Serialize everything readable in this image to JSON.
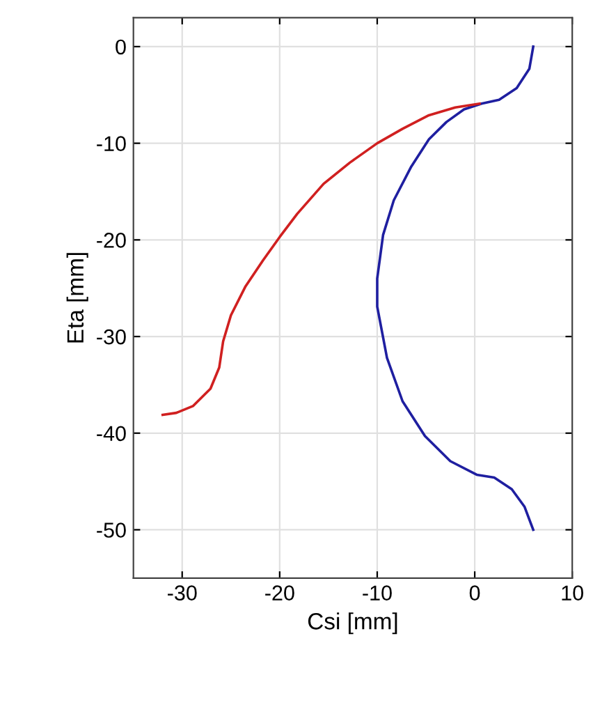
{
  "chart_data": {
    "type": "line",
    "xlabel": "Csi [mm]",
    "ylabel": "Eta [mm]",
    "xlim": [
      -35,
      10
    ],
    "ylim": [
      -55,
      3
    ],
    "xticks": [
      -30,
      -20,
      -10,
      0,
      10
    ],
    "yticks": [
      -50,
      -40,
      -30,
      -20,
      -10,
      0
    ],
    "grid": true,
    "marker": "none",
    "line_style": "solid",
    "series": [
      {
        "color": "#1f1fa0",
        "x": [
          6,
          5.6,
          4.3,
          2.5,
          0.7,
          -1.1,
          -2.9,
          -4.7,
          -6.5,
          -8.3,
          -9.4,
          -10,
          -10,
          -9,
          -7.4,
          -5.1,
          -2.5,
          0.2,
          2,
          3.8,
          5.1,
          6
        ],
        "values": [
          0,
          -2.3,
          -4.3,
          -5.5,
          -5.9,
          -6.5,
          -7.8,
          -9.6,
          -12.4,
          -15.9,
          -19.5,
          -24,
          -26.9,
          -32.2,
          -36.7,
          -40.3,
          -42.9,
          -44.3,
          -44.6,
          -45.8,
          -47.6,
          -50
        ]
      },
      {
        "color": "#d02020",
        "x": [
          0.5,
          -2,
          -4.7,
          -7.4,
          -10,
          -12.8,
          -15.5,
          -18.2,
          -20,
          -21.7,
          -23.5,
          -25,
          -25.8,
          -26.2,
          -27.1,
          -28.9,
          -30.6,
          -32
        ],
        "values": [
          -5.9,
          -6.3,
          -7.1,
          -8.5,
          -10,
          -12,
          -14.2,
          -17.3,
          -19.7,
          -22.1,
          -24.8,
          -27.8,
          -30.5,
          -33.2,
          -35.4,
          -37.2,
          -37.9,
          -38.1
        ]
      }
    ]
  }
}
